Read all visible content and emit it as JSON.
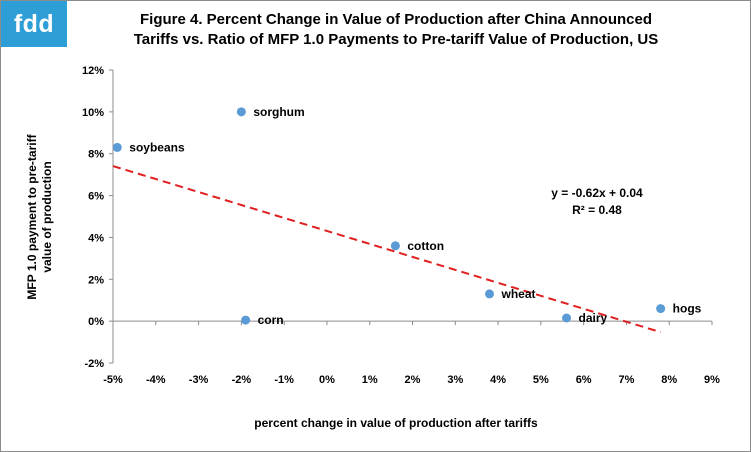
{
  "logo": {
    "text": "fdd"
  },
  "chart_data": {
    "type": "scatter",
    "title_lines": [
      "Figure 4. Percent Change in Value of Production after China Announced",
      "Tariffs vs. Ratio of MFP 1.0 Payments to Pre-tariff Value of Production, US"
    ],
    "xlabel": "percent change in value of production after tariffs",
    "ylabel_lines": [
      "MFP 1.0 payment to pre-tariff",
      "value of production"
    ],
    "xlim": [
      -5,
      9
    ],
    "ylim": [
      -2,
      12
    ],
    "x_ticks": [
      -5,
      -4,
      -3,
      -2,
      -1,
      0,
      1,
      2,
      3,
      4,
      5,
      6,
      7,
      8,
      9
    ],
    "x_tick_labels": [
      "-5%",
      "-4%",
      "-3%",
      "-2%",
      "-1%",
      "0%",
      "1%",
      "2%",
      "3%",
      "4%",
      "5%",
      "6%",
      "7%",
      "8%",
      "9%"
    ],
    "y_ticks": [
      -2,
      0,
      2,
      4,
      6,
      8,
      10,
      12
    ],
    "y_tick_labels": [
      "-2%",
      "0%",
      "2%",
      "4%",
      "6%",
      "8%",
      "10%",
      "12%"
    ],
    "grid": false,
    "point_color": "#5b9bd5",
    "points": [
      {
        "label": "soybeans",
        "x": -4.9,
        "y": 8.3
      },
      {
        "label": "sorghum",
        "x": -2.0,
        "y": 10.0
      },
      {
        "label": "corn",
        "x": -1.9,
        "y": 0.05
      },
      {
        "label": "cotton",
        "x": 1.6,
        "y": 3.6
      },
      {
        "label": "wheat",
        "x": 3.8,
        "y": 1.3
      },
      {
        "label": "dairy",
        "x": 5.6,
        "y": 0.15
      },
      {
        "label": "hogs",
        "x": 7.8,
        "y": 0.6
      }
    ],
    "trendline": {
      "color": "#e02020",
      "x_start": -5.0,
      "x_end": 7.8,
      "slope": -0.62,
      "intercept": 4.31,
      "equation": "y = -0.62x + 0.04",
      "r_squared": "R² = 0.48"
    }
  }
}
